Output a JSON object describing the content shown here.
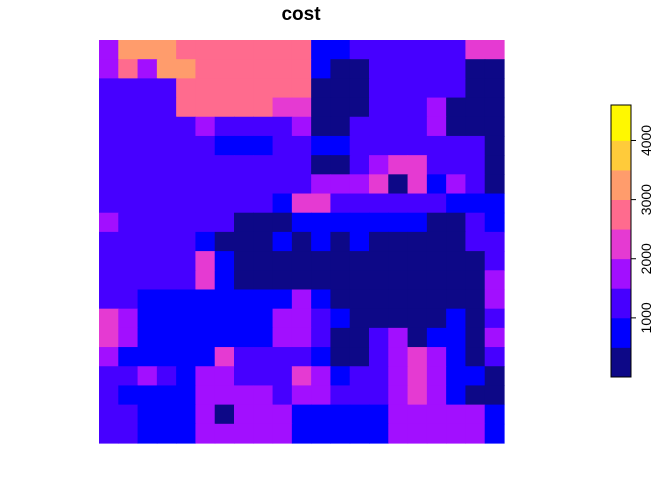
{
  "chart_data": {
    "type": "heatmap",
    "title": "cost",
    "xlabel": "",
    "ylabel": "",
    "grid": false,
    "legend": {
      "position": "right",
      "ticks": [
        1000,
        2000,
        3000,
        4000
      ],
      "tick_labels": [
        "1000",
        "2000",
        "3000",
        "4000"
      ],
      "range": [
        0,
        4600
      ]
    },
    "palette": [
      "#0D0887",
      "#0000FF",
      "#4600FF",
      "#A20FFF",
      "#E53AD2",
      "#FF6B8E",
      "#FF9C6C",
      "#FFCB3A",
      "#FFF800"
    ],
    "bins": [
      0,
      500,
      1000,
      1500,
      2000,
      2500,
      3000,
      3500,
      4000,
      4600
    ],
    "grid_values": [
      [
        3,
        6,
        6,
        6,
        5,
        5,
        5,
        5,
        5,
        5,
        5,
        1,
        1,
        2,
        2,
        2,
        2,
        2,
        2,
        4,
        4
      ],
      [
        3,
        5,
        3,
        6,
        6,
        5,
        5,
        5,
        5,
        5,
        5,
        1,
        0,
        0,
        2,
        2,
        2,
        2,
        2,
        0,
        0
      ],
      [
        2,
        2,
        2,
        2,
        5,
        5,
        5,
        5,
        5,
        5,
        5,
        0,
        0,
        0,
        2,
        2,
        2,
        2,
        2,
        0,
        0
      ],
      [
        2,
        2,
        2,
        2,
        5,
        5,
        5,
        5,
        5,
        4,
        4,
        0,
        0,
        0,
        2,
        2,
        2,
        3,
        0,
        0,
        0
      ],
      [
        2,
        2,
        2,
        2,
        2,
        3,
        2,
        2,
        2,
        2,
        3,
        0,
        0,
        2,
        2,
        2,
        2,
        3,
        0,
        0,
        0
      ],
      [
        2,
        2,
        2,
        2,
        2,
        2,
        1,
        1,
        1,
        2,
        2,
        1,
        1,
        2,
        2,
        2,
        2,
        2,
        2,
        2,
        0
      ],
      [
        2,
        2,
        2,
        2,
        2,
        2,
        2,
        2,
        2,
        2,
        2,
        0,
        0,
        2,
        3,
        4,
        4,
        2,
        2,
        2,
        0
      ],
      [
        2,
        2,
        2,
        2,
        2,
        2,
        2,
        2,
        2,
        2,
        2,
        3,
        3,
        3,
        4,
        0,
        4,
        1,
        3,
        2,
        0
      ],
      [
        2,
        2,
        2,
        2,
        2,
        2,
        2,
        2,
        2,
        1,
        4,
        4,
        2,
        2,
        2,
        2,
        2,
        2,
        1,
        1,
        1
      ],
      [
        3,
        2,
        2,
        2,
        2,
        2,
        2,
        0,
        0,
        0,
        1,
        1,
        1,
        1,
        1,
        1,
        1,
        0,
        0,
        2,
        1
      ],
      [
        2,
        2,
        2,
        2,
        2,
        1,
        0,
        0,
        0,
        1,
        0,
        1,
        0,
        1,
        0,
        0,
        0,
        0,
        0,
        2,
        2
      ],
      [
        2,
        2,
        2,
        2,
        2,
        4,
        1,
        0,
        0,
        0,
        0,
        0,
        0,
        0,
        0,
        0,
        0,
        0,
        0,
        0,
        2
      ],
      [
        2,
        2,
        2,
        2,
        2,
        4,
        1,
        0,
        0,
        0,
        0,
        0,
        0,
        0,
        0,
        0,
        0,
        0,
        0,
        0,
        3
      ],
      [
        2,
        2,
        1,
        1,
        1,
        1,
        1,
        1,
        1,
        1,
        3,
        1,
        0,
        0,
        0,
        0,
        0,
        0,
        0,
        0,
        3
      ],
      [
        4,
        3,
        1,
        1,
        1,
        1,
        1,
        1,
        1,
        3,
        3,
        2,
        1,
        0,
        0,
        0,
        0,
        0,
        1,
        0,
        2
      ],
      [
        4,
        3,
        1,
        1,
        1,
        1,
        1,
        1,
        1,
        3,
        3,
        2,
        0,
        0,
        2,
        3,
        0,
        1,
        1,
        0,
        3
      ],
      [
        3,
        1,
        1,
        1,
        1,
        1,
        4,
        2,
        2,
        2,
        2,
        1,
        0,
        0,
        2,
        3,
        4,
        3,
        1,
        0,
        2
      ],
      [
        2,
        2,
        3,
        2,
        1,
        3,
        3,
        2,
        2,
        2,
        4,
        3,
        1,
        2,
        2,
        3,
        4,
        3,
        1,
        1,
        0
      ],
      [
        2,
        1,
        1,
        1,
        1,
        3,
        3,
        3,
        3,
        2,
        3,
        3,
        2,
        2,
        2,
        3,
        4,
        3,
        1,
        0,
        0
      ],
      [
        2,
        2,
        1,
        1,
        1,
        3,
        0,
        3,
        3,
        3,
        1,
        1,
        1,
        1,
        1,
        3,
        3,
        3,
        3,
        3,
        1
      ],
      [
        2,
        2,
        1,
        1,
        1,
        3,
        3,
        3,
        3,
        3,
        1,
        1,
        1,
        1,
        1,
        3,
        3,
        3,
        3,
        3,
        1
      ]
    ]
  }
}
